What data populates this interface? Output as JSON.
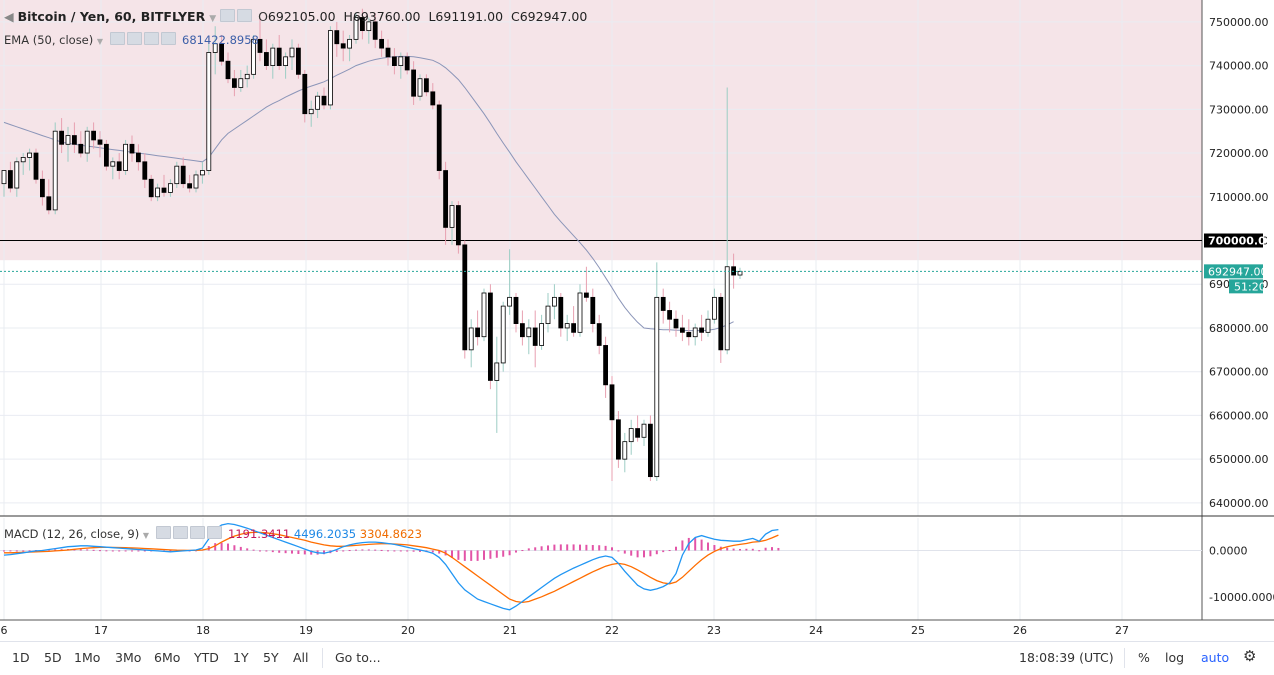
{
  "header": {
    "symbol": "Bitcoin / Yen, 60, BITFLYER",
    "open_label": "O",
    "open": "692105.00",
    "high_label": "H",
    "high": "693760.00",
    "low_label": "L",
    "low": "691191.00",
    "close_label": "C",
    "close": "692947.00"
  },
  "ema": {
    "label": "EMA (50, close)",
    "value": "681422.8958"
  },
  "macd": {
    "label": "MACD (12, 26, close, 9)",
    "hist": "1191.3411",
    "macd": "4496.2035",
    "signal": "3304.8623"
  },
  "price_axis": {
    "ticks": [
      "750000.00",
      "740000.00",
      "730000.00",
      "720000.00",
      "710000.00",
      "700000.00",
      "690000.00",
      "680000.00",
      "670000.00",
      "660000.00",
      "650000.00",
      "640000.00"
    ],
    "line_label": "700000.00",
    "last_price": "692947.00",
    "countdown": "51:20"
  },
  "macd_axis": {
    "ticks": [
      "0.0000",
      "-10000.0000"
    ]
  },
  "time_axis": {
    "ticks": [
      "6",
      "17",
      "18",
      "19",
      "20",
      "21",
      "22",
      "23",
      "24",
      "25",
      "26",
      "27"
    ]
  },
  "bottom_bar": {
    "ranges": [
      "1D",
      "5D",
      "1Mo",
      "3Mo",
      "6Mo",
      "YTD",
      "1Y",
      "5Y",
      "All"
    ],
    "goto": "Go to...",
    "clock": "18:08:39 (UTC)",
    "percent": "%",
    "log": "log",
    "auto": "auto"
  },
  "colors": {
    "zone": "#f5e4e8",
    "ema_line": "#8b95b8",
    "macd_line": "#2196f3",
    "signal_line": "#ff6d00",
    "hist": "#d81b8a",
    "accent": "#2962ff",
    "price_tag": "#26a69a"
  },
  "chart_data": {
    "type": "candlestick",
    "timeframe": "60 minute",
    "series": [
      {
        "name": "Bitcoin / Yen",
        "values": [
          [
            713000,
            716000,
            710000,
            716000
          ],
          [
            716000,
            718000,
            711000,
            712000
          ],
          [
            712000,
            719000,
            710000,
            718000
          ],
          [
            718000,
            720000,
            715000,
            719000
          ],
          [
            719000,
            721000,
            716000,
            720000
          ],
          [
            720000,
            721000,
            713000,
            714000
          ],
          [
            714000,
            716000,
            708000,
            710000
          ],
          [
            710000,
            714000,
            706000,
            707000
          ],
          [
            707000,
            727000,
            706000,
            725000
          ],
          [
            725000,
            728000,
            720000,
            722000
          ],
          [
            722000,
            726000,
            718000,
            724000
          ],
          [
            724000,
            727000,
            720000,
            722000
          ],
          [
            722000,
            725000,
            719000,
            720000
          ],
          [
            720000,
            726000,
            718000,
            725000
          ],
          [
            725000,
            727000,
            721000,
            723000
          ],
          [
            723000,
            725000,
            719000,
            722000
          ],
          [
            722000,
            723000,
            716000,
            717000
          ],
          [
            717000,
            719000,
            714000,
            718000
          ],
          [
            718000,
            720000,
            714000,
            716000
          ],
          [
            716000,
            723000,
            715000,
            722000
          ],
          [
            722000,
            724000,
            718000,
            720000
          ],
          [
            720000,
            722000,
            716000,
            718000
          ],
          [
            718000,
            720000,
            712000,
            714000
          ],
          [
            714000,
            715000,
            709000,
            710000
          ],
          [
            710000,
            713000,
            709000,
            712000
          ],
          [
            712000,
            715000,
            710000,
            711000
          ],
          [
            711000,
            714000,
            710000,
            713000
          ],
          [
            713000,
            718000,
            712000,
            717000
          ],
          [
            717000,
            719000,
            712000,
            713000
          ],
          [
            713000,
            715000,
            711000,
            712000
          ],
          [
            712000,
            716000,
            711000,
            715000
          ],
          [
            715000,
            718000,
            713000,
            716000
          ],
          [
            716000,
            745000,
            715000,
            743000
          ],
          [
            743000,
            749000,
            738000,
            745000
          ],
          [
            745000,
            747000,
            740000,
            741000
          ],
          [
            741000,
            743000,
            736000,
            737000
          ],
          [
            737000,
            739000,
            733000,
            735000
          ],
          [
            735000,
            739000,
            734000,
            737000
          ],
          [
            737000,
            740000,
            735000,
            738000
          ],
          [
            738000,
            747000,
            737000,
            746000
          ],
          [
            746000,
            751000,
            741000,
            743000
          ],
          [
            743000,
            746000,
            739000,
            740000
          ],
          [
            740000,
            745000,
            737000,
            744000
          ],
          [
            744000,
            747000,
            739000,
            740000
          ],
          [
            740000,
            743000,
            737000,
            742000
          ],
          [
            742000,
            746000,
            739000,
            744000
          ],
          [
            744000,
            745000,
            737000,
            738000
          ],
          [
            738000,
            739000,
            727000,
            729000
          ],
          [
            729000,
            732000,
            726000,
            730000
          ],
          [
            730000,
            734000,
            728000,
            733000
          ],
          [
            733000,
            735000,
            730000,
            731000
          ],
          [
            731000,
            749000,
            730000,
            748000
          ],
          [
            748000,
            750000,
            742000,
            745000
          ],
          [
            745000,
            748000,
            741000,
            744000
          ],
          [
            744000,
            747000,
            741000,
            746000
          ],
          [
            746000,
            752000,
            745000,
            751000
          ],
          [
            751000,
            753000,
            746000,
            748000
          ],
          [
            748000,
            751000,
            745000,
            750000
          ],
          [
            750000,
            752000,
            744000,
            746000
          ],
          [
            746000,
            748000,
            742000,
            744000
          ],
          [
            744000,
            746000,
            740000,
            742000
          ],
          [
            742000,
            744000,
            738000,
            740000
          ],
          [
            740000,
            743000,
            737000,
            742000
          ],
          [
            742000,
            743000,
            738000,
            739000
          ],
          [
            739000,
            741000,
            731000,
            733000
          ],
          [
            733000,
            738000,
            732000,
            737000
          ],
          [
            737000,
            738000,
            733000,
            734000
          ],
          [
            734000,
            736000,
            730000,
            731000
          ],
          [
            731000,
            732000,
            714000,
            716000
          ],
          [
            716000,
            718000,
            699000,
            703000
          ],
          [
            703000,
            709000,
            699000,
            708000
          ],
          [
            708000,
            709000,
            697000,
            699000
          ],
          [
            699000,
            700000,
            673000,
            675000
          ],
          [
            675000,
            682000,
            671000,
            680000
          ],
          [
            680000,
            684000,
            676000,
            678000
          ],
          [
            678000,
            689000,
            677000,
            688000
          ],
          [
            688000,
            690000,
            666000,
            668000
          ],
          [
            668000,
            678000,
            656000,
            672000
          ],
          [
            672000,
            686000,
            670000,
            685000
          ],
          [
            685000,
            698000,
            683000,
            687000
          ],
          [
            687000,
            688000,
            679000,
            681000
          ],
          [
            681000,
            684000,
            676000,
            678000
          ],
          [
            678000,
            682000,
            674000,
            680000
          ],
          [
            680000,
            684000,
            671000,
            676000
          ],
          [
            676000,
            683000,
            675000,
            681000
          ],
          [
            681000,
            688000,
            679000,
            685000
          ],
          [
            685000,
            690000,
            682000,
            687000
          ],
          [
            687000,
            688000,
            678000,
            680000
          ],
          [
            680000,
            683000,
            677000,
            681000
          ],
          [
            681000,
            685000,
            678000,
            679000
          ],
          [
            679000,
            690000,
            678000,
            688000
          ],
          [
            688000,
            694000,
            686000,
            687000
          ],
          [
            687000,
            689000,
            679000,
            681000
          ],
          [
            681000,
            683000,
            674000,
            676000
          ],
          [
            676000,
            678000,
            664000,
            667000
          ],
          [
            667000,
            669000,
            645000,
            659000
          ],
          [
            659000,
            661000,
            648000,
            650000
          ],
          [
            650000,
            656000,
            647000,
            654000
          ],
          [
            654000,
            659000,
            651000,
            657000
          ],
          [
            657000,
            660000,
            654000,
            655000
          ],
          [
            655000,
            659000,
            653000,
            658000
          ],
          [
            658000,
            660000,
            645000,
            646000
          ],
          [
            646000,
            695000,
            645000,
            687000
          ],
          [
            687000,
            689000,
            681000,
            684000
          ],
          [
            684000,
            686000,
            679000,
            682000
          ],
          [
            682000,
            684000,
            678000,
            680000
          ],
          [
            680000,
            683000,
            677000,
            679000
          ],
          [
            679000,
            682000,
            676000,
            678000
          ],
          [
            678000,
            681000,
            676000,
            680000
          ],
          [
            680000,
            683000,
            677000,
            679000
          ],
          [
            679000,
            684000,
            678000,
            682000
          ],
          [
            682000,
            689000,
            681000,
            687000
          ],
          [
            687000,
            688000,
            672000,
            675000
          ],
          [
            675000,
            735000,
            674000,
            694000
          ],
          [
            694000,
            697000,
            689000,
            692105
          ],
          [
            692105,
            693760,
            691191,
            692947
          ]
        ]
      },
      {
        "name": "EMA (50, close)",
        "values": [
          727000,
          726500,
          726000,
          725500,
          725000,
          724500,
          724000,
          723500,
          723000,
          722500,
          722200,
          722000,
          721800,
          721600,
          721400,
          721200,
          721000,
          720800,
          720600,
          720400,
          720200,
          720000,
          719800,
          719600,
          719400,
          719200,
          719000,
          718800,
          718600,
          718400,
          718200,
          718000,
          719000,
          721000,
          723000,
          724500,
          725500,
          726500,
          727500,
          728500,
          729500,
          730500,
          731300,
          732000,
          732800,
          733500,
          734200,
          734800,
          735300,
          735800,
          736300,
          737000,
          737800,
          738500,
          739200,
          740000,
          740500,
          741000,
          741400,
          741700,
          741900,
          742000,
          742100,
          742100,
          742000,
          741800,
          741500,
          741200,
          740500,
          739500,
          738200,
          736800,
          735000,
          733000,
          731000,
          729000,
          726800,
          724500,
          722300,
          720200,
          718000,
          716000,
          714000,
          712000,
          710000,
          708000,
          706000,
          704300,
          702700,
          701100,
          699500,
          697800,
          695900,
          693800,
          691500,
          689200,
          686800,
          684700,
          682900,
          681300,
          680000,
          679800,
          679700,
          679600,
          679600,
          679500,
          679500,
          679400,
          679400,
          679400,
          679500,
          679700,
          680100,
          680700,
          681422.8958
        ]
      }
    ],
    "macd": {
      "params": "12, 26, close, 9",
      "macd_line": [
        -1000,
        -900,
        -700,
        -500,
        -300,
        -100,
        0,
        200,
        400,
        600,
        800,
        900,
        1000,
        1000,
        900,
        800,
        700,
        600,
        500,
        400,
        300,
        200,
        100,
        0,
        -100,
        -200,
        -300,
        -200,
        -100,
        0,
        100,
        500,
        2500,
        4500,
        5500,
        5800,
        5600,
        5200,
        4800,
        4300,
        3800,
        3300,
        2800,
        2300,
        1800,
        1300,
        800,
        300,
        -200,
        -500,
        -600,
        -300,
        200,
        800,
        1200,
        1500,
        1700,
        1800,
        1800,
        1700,
        1500,
        1300,
        1000,
        700,
        400,
        100,
        -200,
        -600,
        -1500,
        -3000,
        -5000,
        -7000,
        -8500,
        -9500,
        -10500,
        -11000,
        -11500,
        -12000,
        -12500,
        -12800,
        -12000,
        -11000,
        -10000,
        -9000,
        -8000,
        -7000,
        -6000,
        -5200,
        -4500,
        -3800,
        -3200,
        -2600,
        -2000,
        -1500,
        -1200,
        -1500,
        -2800,
        -4500,
        -6000,
        -7500,
        -8300,
        -8600,
        -8300,
        -7800,
        -7000,
        -5000,
        -1000,
        1500,
        2800,
        3200,
        2800,
        2400,
        2200,
        2100,
        2000,
        2000,
        2300,
        2600,
        2000,
        3500,
        4300,
        4496.2035
      ],
      "signal_line": [
        -500,
        -500,
        -450,
        -400,
        -350,
        -300,
        -250,
        -200,
        -100,
        0,
        100,
        250,
        400,
        500,
        600,
        650,
        650,
        650,
        630,
        600,
        550,
        500,
        430,
        350,
        270,
        200,
        120,
        60,
        30,
        20,
        30,
        100,
        400,
        1000,
        1800,
        2500,
        3100,
        3500,
        3800,
        3900,
        3900,
        3800,
        3600,
        3400,
        3100,
        2800,
        2500,
        2200,
        1800,
        1500,
        1200,
        1000,
        900,
        900,
        1000,
        1100,
        1200,
        1300,
        1400,
        1450,
        1450,
        1400,
        1300,
        1200,
        1000,
        800,
        600,
        300,
        0,
        -600,
        -1500,
        -2500,
        -3500,
        -4500,
        -5500,
        -6500,
        -7500,
        -8500,
        -9500,
        -10500,
        -11000,
        -11200,
        -11000,
        -10500,
        -10000,
        -9400,
        -8800,
        -8100,
        -7400,
        -6700,
        -6000,
        -5300,
        -4600,
        -4000,
        -3400,
        -3000,
        -2800,
        -3000,
        -3500,
        -4200,
        -5000,
        -5800,
        -6500,
        -7000,
        -7200,
        -6800,
        -5800,
        -4500,
        -3200,
        -2000,
        -1000,
        -200,
        400,
        800,
        1100,
        1300,
        1500,
        1800,
        1900,
        2200,
        2700,
        3304.8623
      ],
      "histogram_last": 1191.3411,
      "ylim": [
        -15000,
        7000
      ]
    },
    "xlabel": "",
    "ylabel": "",
    "ylim": [
      637000,
      755000
    ],
    "price_line": 700000,
    "log_scale": false,
    "grid": true
  }
}
